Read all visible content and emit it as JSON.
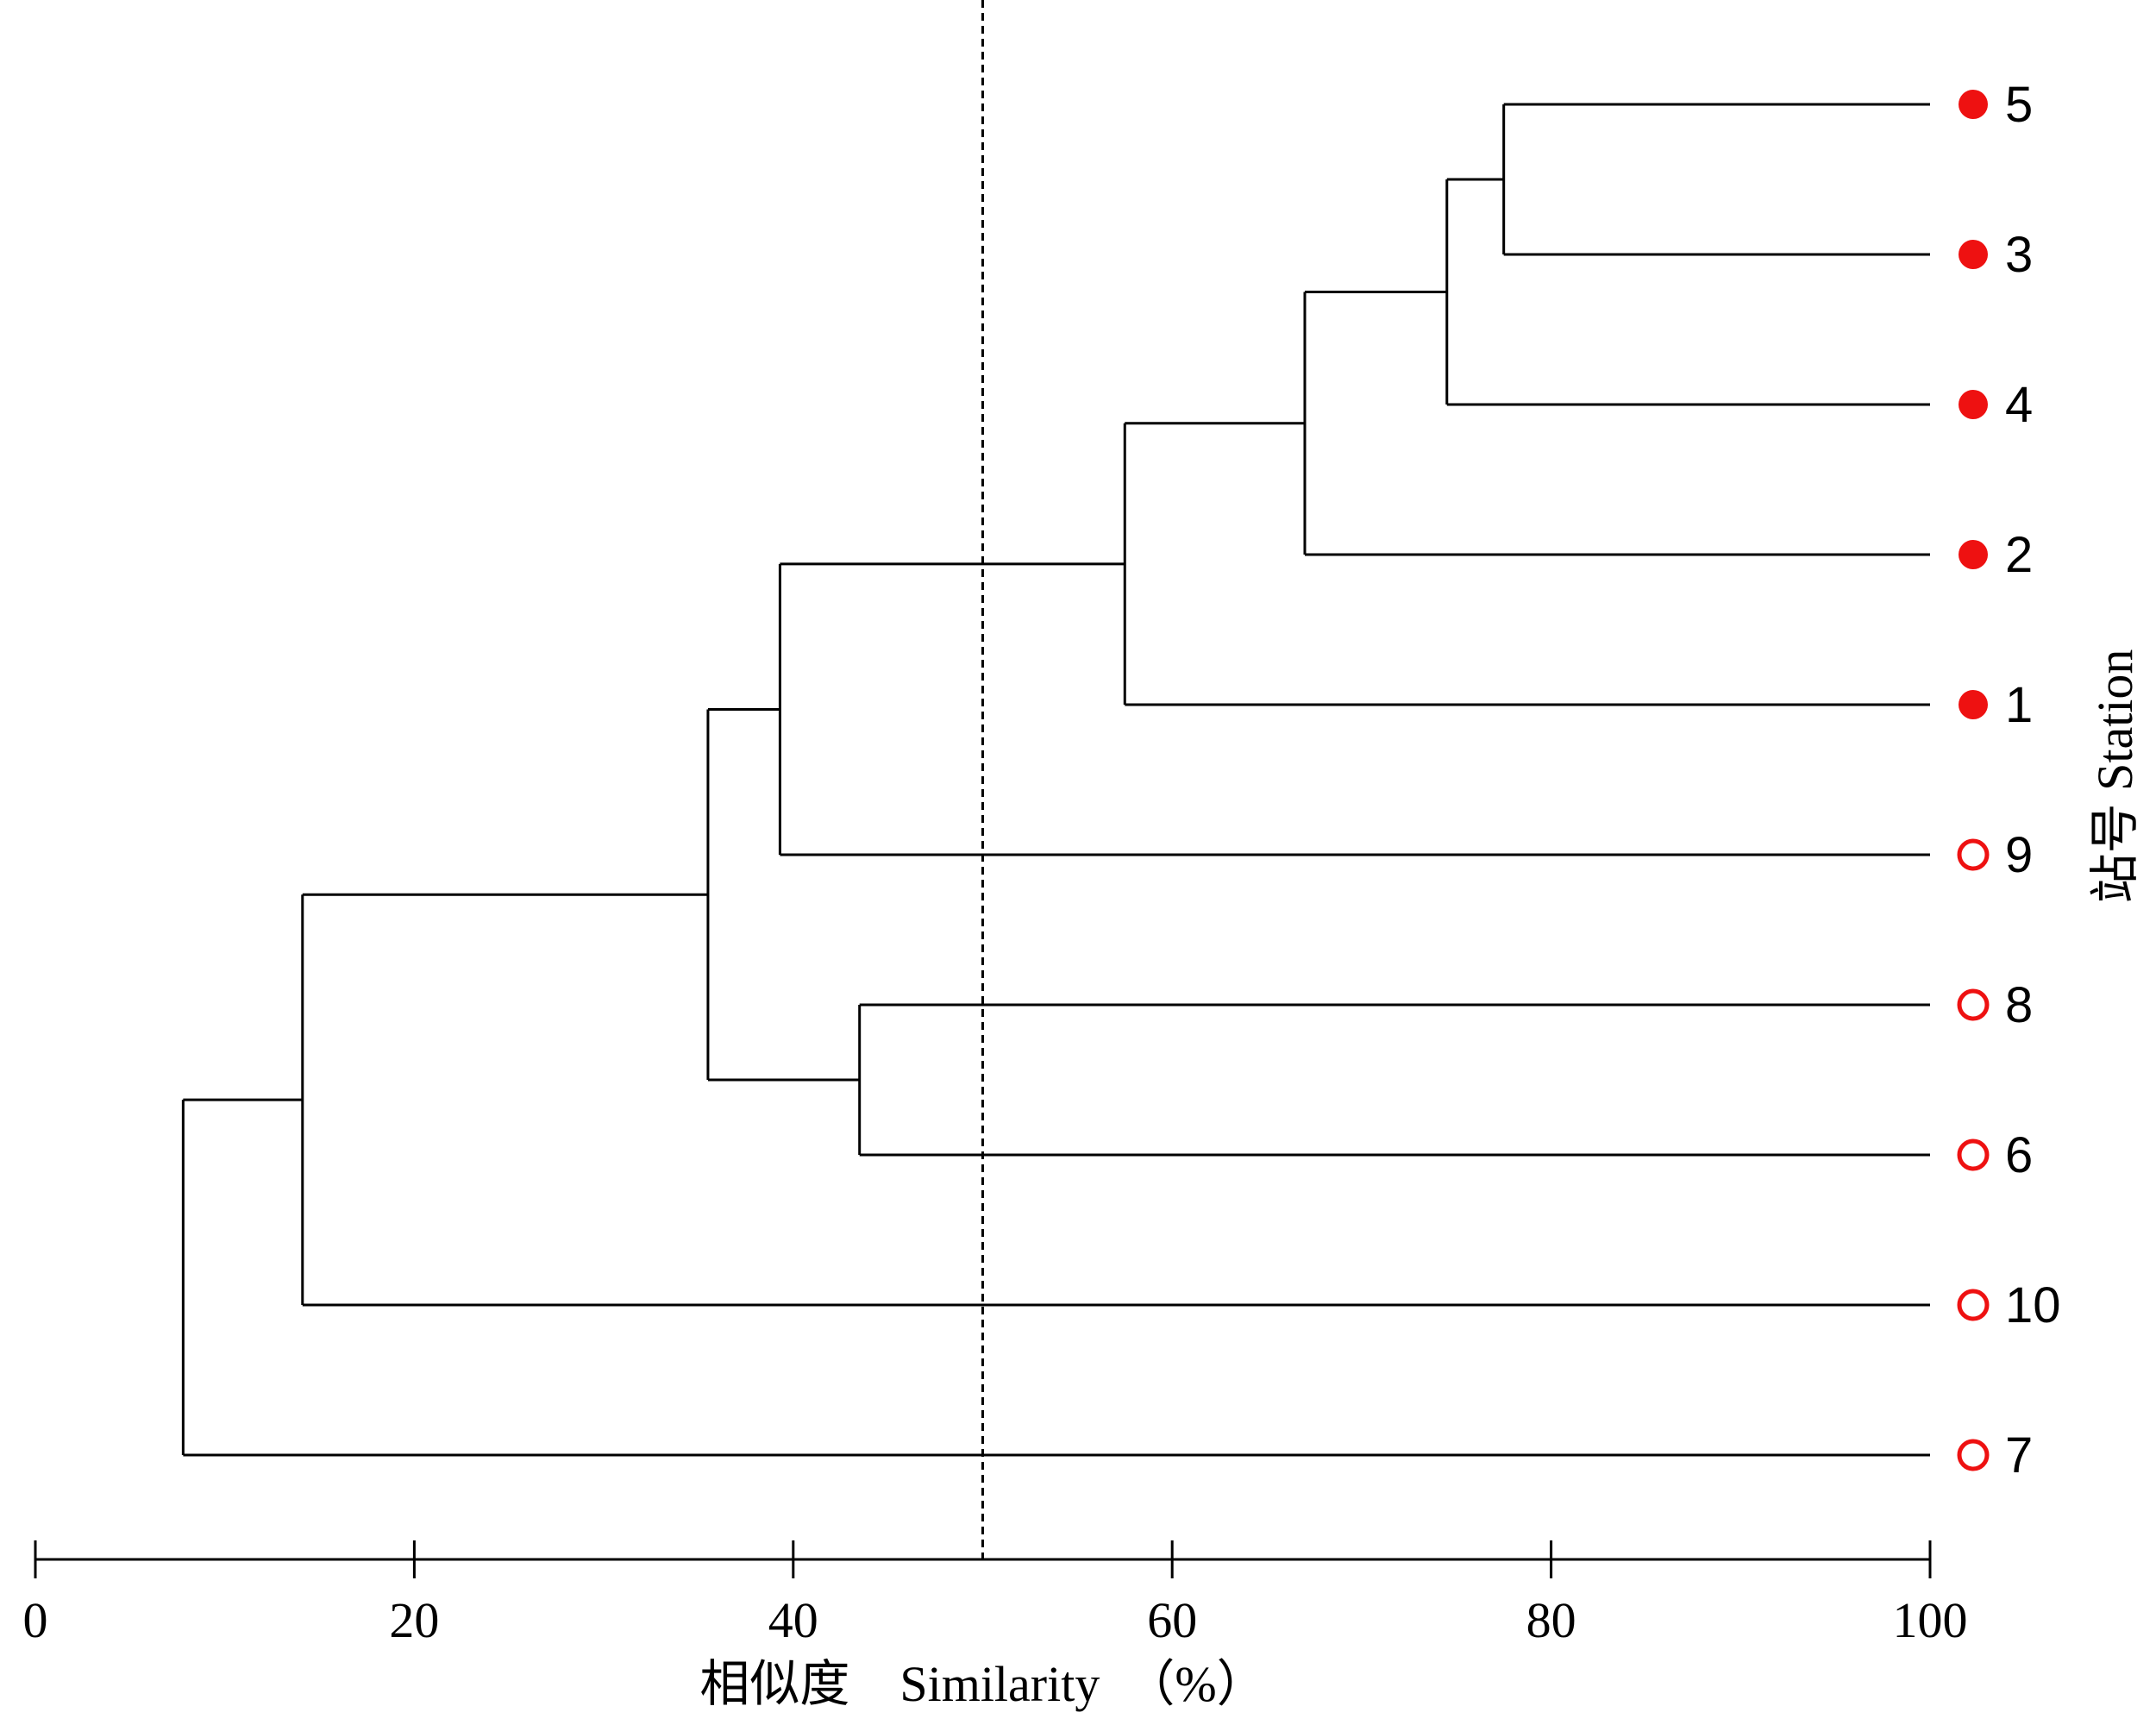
{
  "chart_data": {
    "type": "dendrogram",
    "xlabel": "相似度　Similarity　（%）",
    "ylabel": "站号 Station",
    "xlim": [
      0,
      100
    ],
    "xticks": [
      0,
      20,
      40,
      60,
      80,
      100
    ],
    "cutoff_similarity": 50,
    "colors": {
      "marker": "#ee1111",
      "line": "#000000"
    },
    "leaves": [
      {
        "label": "5",
        "marker": "filled"
      },
      {
        "label": "3",
        "marker": "filled"
      },
      {
        "label": "4",
        "marker": "filled"
      },
      {
        "label": "2",
        "marker": "filled"
      },
      {
        "label": "1",
        "marker": "filled"
      },
      {
        "label": "9",
        "marker": "open"
      },
      {
        "label": "8",
        "marker": "open"
      },
      {
        "label": "6",
        "marker": "open"
      },
      {
        "label": "10",
        "marker": "open"
      },
      {
        "label": "7",
        "marker": "open"
      }
    ],
    "merges": [
      {
        "members": [
          "5",
          "3"
        ],
        "similarity": 77.5
      },
      {
        "members": [
          "5,3",
          "4"
        ],
        "similarity": 74.5
      },
      {
        "members": [
          "5,3,4",
          "2"
        ],
        "similarity": 67
      },
      {
        "members": [
          "5,3,4,2",
          "1"
        ],
        "similarity": 57.5
      },
      {
        "members": [
          "5,3,4,2,1",
          "9"
        ],
        "similarity": 39.3
      },
      {
        "members": [
          "8",
          "6"
        ],
        "similarity": 43.5
      },
      {
        "members": [
          "5,3,4,2,1,9",
          "8,6"
        ],
        "similarity": 35.5
      },
      {
        "members": [
          "5,3,4,2,1,9,8,6",
          "10"
        ],
        "similarity": 14.1
      },
      {
        "members": [
          "5,3,4,2,1,9,8,6,10",
          "7"
        ],
        "similarity": 7.8
      }
    ]
  }
}
